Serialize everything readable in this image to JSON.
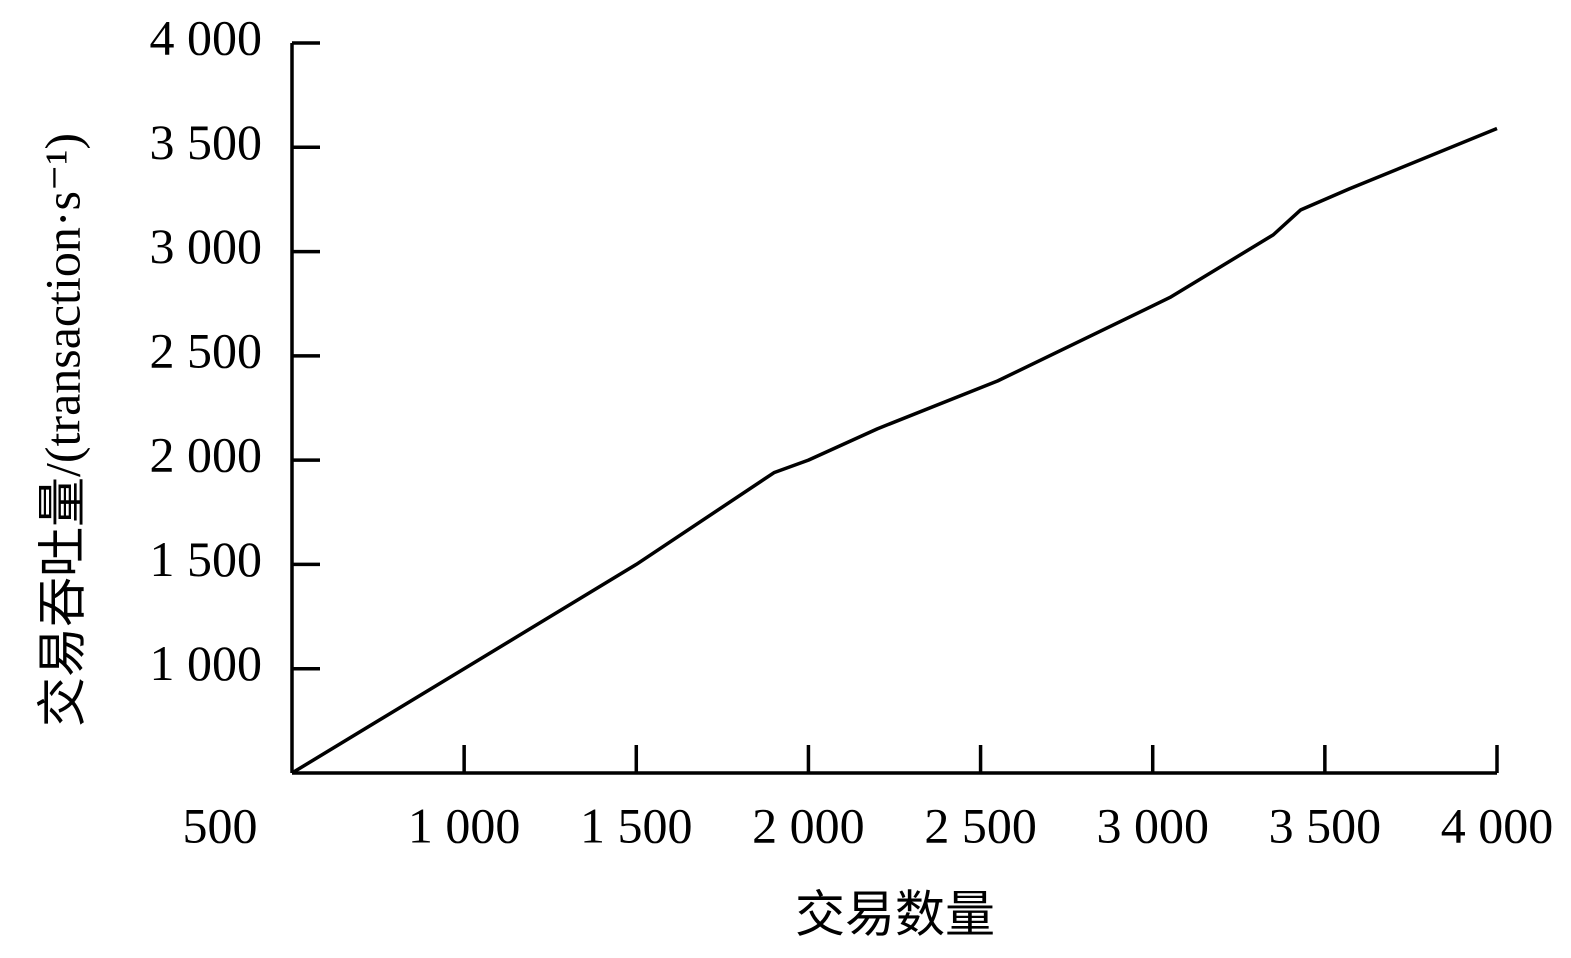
{
  "chart_data": {
    "type": "line",
    "x_label": "交易数量",
    "y_label": "交易吞吐量/(transaction·s⁻¹)",
    "xlim": [
      500,
      4000
    ],
    "ylim": [
      500,
      4000
    ],
    "xticks": [
      500,
      {
        "value": 1000,
        "label": "1 000"
      },
      {
        "value": 1500,
        "label": "1 500"
      },
      {
        "value": 2000,
        "label": "2 000"
      },
      {
        "value": 2500,
        "label": "2 500"
      },
      {
        "value": 3000,
        "label": "3 000"
      },
      {
        "value": 3500,
        "label": "3 500"
      },
      {
        "value": 4000,
        "label": "4 000"
      }
    ],
    "yticks": [
      {
        "value": 1000,
        "label": "1 000"
      },
      {
        "value": 1500,
        "label": "1 500"
      },
      {
        "value": 2000,
        "label": "2 000"
      },
      {
        "value": 2500,
        "label": "2 500"
      },
      {
        "value": 3000,
        "label": "3 000"
      },
      {
        "value": 3500,
        "label": "3 500"
      },
      {
        "value": 4000,
        "label": "4 000"
      }
    ],
    "x": [
      500,
      1000,
      1500,
      1900,
      2000,
      2200,
      2550,
      3050,
      3350,
      3430,
      3570,
      4000
    ],
    "values": [
      500,
      1000,
      1500,
      1940,
      2000,
      2150,
      2380,
      2780,
      3080,
      3200,
      3300,
      3590
    ],
    "color": "#000000"
  }
}
